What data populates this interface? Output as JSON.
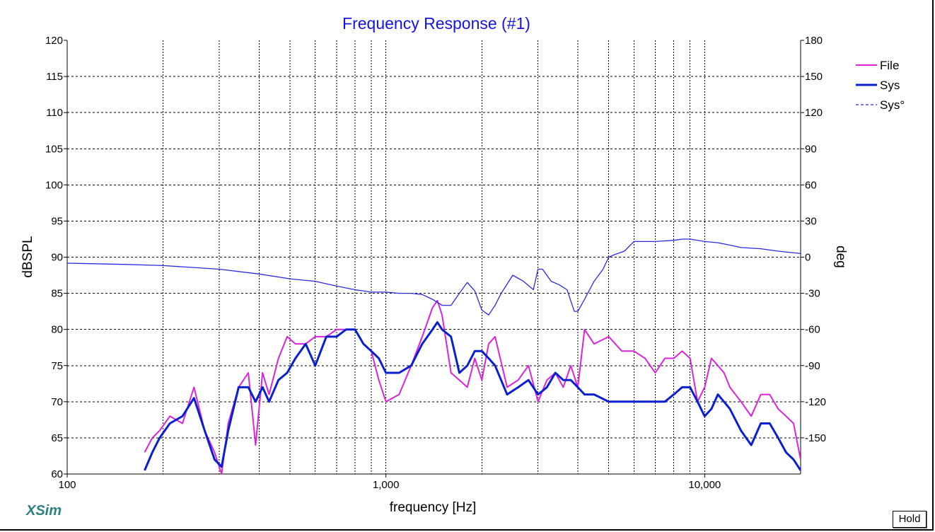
{
  "app": {
    "brand": "XSim",
    "hold_label": "Hold"
  },
  "colors": {
    "title": "#1414e6",
    "file": "#dd22dd",
    "sys": "#0a1fcf",
    "phase": "#2a2ae0",
    "grid": "#7a7a7a"
  },
  "chart_data": {
    "type": "line",
    "title": "Frequency Response (#1)",
    "xlabel": "frequency [Hz]",
    "ylabel": "dBSPL",
    "y2label": "deg",
    "x_scale": "log",
    "xlim": [
      100,
      20000
    ],
    "ylim": [
      60,
      120
    ],
    "y2lim": [
      -180,
      180
    ],
    "x_tick_labels": [
      {
        "v": 100,
        "label": "100"
      },
      {
        "v": 1000,
        "label": "1,000"
      },
      {
        "v": 10000,
        "label": "10,000"
      }
    ],
    "y_ticks": [
      60,
      65,
      70,
      75,
      80,
      85,
      90,
      95,
      100,
      105,
      110,
      115,
      120
    ],
    "y2_ticks": [
      -150,
      -120,
      -90,
      -60,
      -30,
      0,
      30,
      60,
      90,
      120,
      150,
      180
    ],
    "grid": true,
    "legend": {
      "position": "right",
      "entries": [
        "File",
        "Sys",
        "Sys°"
      ]
    },
    "series": [
      {
        "name": "File",
        "axis": "left",
        "style": "solid",
        "x": [
          175,
          185,
          195,
          210,
          230,
          250,
          270,
          290,
          305,
          320,
          345,
          370,
          390,
          410,
          430,
          460,
          490,
          520,
          560,
          600,
          650,
          700,
          750,
          800,
          850,
          900,
          950,
          1000,
          1100,
          1200,
          1300,
          1400,
          1450,
          1500,
          1600,
          1700,
          1800,
          1900,
          2000,
          2100,
          2200,
          2400,
          2600,
          2800,
          3000,
          3200,
          3400,
          3600,
          3800,
          4000,
          4200,
          4500,
          5000,
          5500,
          6000,
          6500,
          7000,
          7500,
          8000,
          8500,
          9000,
          9500,
          10000,
          10500,
          11000,
          11500,
          12000,
          13000,
          14000,
          15000,
          16000,
          17000,
          18000,
          19000,
          20000
        ],
        "y": [
          63,
          65,
          66,
          68,
          67,
          72,
          66,
          63,
          60,
          67,
          72,
          74,
          64,
          74,
          71,
          76,
          79,
          78,
          78,
          79,
          79,
          80,
          80,
          80,
          78,
          77,
          73,
          70,
          71,
          75,
          79,
          83,
          84,
          82,
          74,
          73,
          72,
          76,
          73,
          78,
          79,
          72,
          73,
          75,
          70,
          73,
          74,
          72,
          75,
          72,
          80,
          78,
          79,
          77,
          77,
          76,
          74,
          76,
          76,
          77,
          76,
          70,
          72,
          76,
          75,
          74,
          72,
          70,
          68,
          71,
          71,
          69,
          68,
          67,
          62
        ],
        "x_draw_order": "ascending"
      },
      {
        "name": "Sys",
        "axis": "left",
        "style": "solid",
        "x": [
          175,
          185,
          195,
          210,
          230,
          250,
          270,
          290,
          305,
          320,
          345,
          370,
          390,
          410,
          430,
          460,
          490,
          520,
          560,
          600,
          650,
          700,
          750,
          800,
          850,
          900,
          950,
          1000,
          1100,
          1200,
          1300,
          1400,
          1450,
          1500,
          1600,
          1700,
          1800,
          1900,
          2000,
          2100,
          2200,
          2400,
          2600,
          2800,
          3000,
          3200,
          3400,
          3600,
          3800,
          4000,
          4200,
          4500,
          5000,
          5500,
          6000,
          6500,
          7000,
          7500,
          8000,
          8500,
          9000,
          9500,
          10000,
          10500,
          11000,
          11500,
          12000,
          13000,
          14000,
          15000,
          16000,
          17000,
          18000,
          19000,
          20000
        ],
        "y": [
          60.5,
          63,
          65,
          67,
          68,
          70.5,
          66,
          62,
          61,
          66,
          72,
          72,
          70,
          72,
          70,
          73,
          74,
          76,
          78,
          75,
          79,
          79,
          80,
          80,
          78,
          77,
          76,
          74,
          74,
          75,
          78,
          80,
          81,
          80,
          79,
          74,
          75,
          77,
          77,
          76,
          75,
          71,
          72,
          73,
          71,
          72,
          74,
          73,
          73,
          72,
          71,
          71,
          70,
          70,
          70,
          70,
          70,
          70,
          71,
          72,
          72,
          70,
          68,
          69,
          71,
          70,
          69,
          66,
          64,
          67,
          67,
          65,
          63,
          62,
          60.5
        ]
      },
      {
        "name": "Sys°",
        "axis": "right",
        "style": "solid-thin",
        "x": [
          100,
          150,
          200,
          300,
          400,
          500,
          600,
          700,
          800,
          900,
          1000,
          1100,
          1200,
          1300,
          1400,
          1500,
          1600,
          1700,
          1800,
          1900,
          2000,
          2100,
          2200,
          2300,
          2500,
          2700,
          2900,
          3000,
          3100,
          3300,
          3500,
          3700,
          3900,
          4000,
          4200,
          4500,
          4800,
          5000,
          5200,
          5600,
          6000,
          7000,
          8000,
          8500,
          9000,
          10000,
          11000,
          12000,
          13000,
          15000,
          17000,
          20000
        ],
        "y": [
          -5,
          -6,
          -7,
          -10,
          -14,
          -18,
          -20,
          -24,
          -27,
          -29,
          -29,
          -30,
          -30,
          -31,
          -35,
          -40,
          -40,
          -30,
          -21,
          -28,
          -44,
          -48,
          -40,
          -30,
          -15,
          -20,
          -27,
          -10,
          -10,
          -20,
          -23,
          -27,
          -45,
          -45,
          -35,
          -20,
          -10,
          0,
          2,
          5,
          13,
          13,
          14,
          15,
          15,
          13,
          12,
          10,
          8,
          7,
          5,
          3
        ]
      }
    ]
  }
}
